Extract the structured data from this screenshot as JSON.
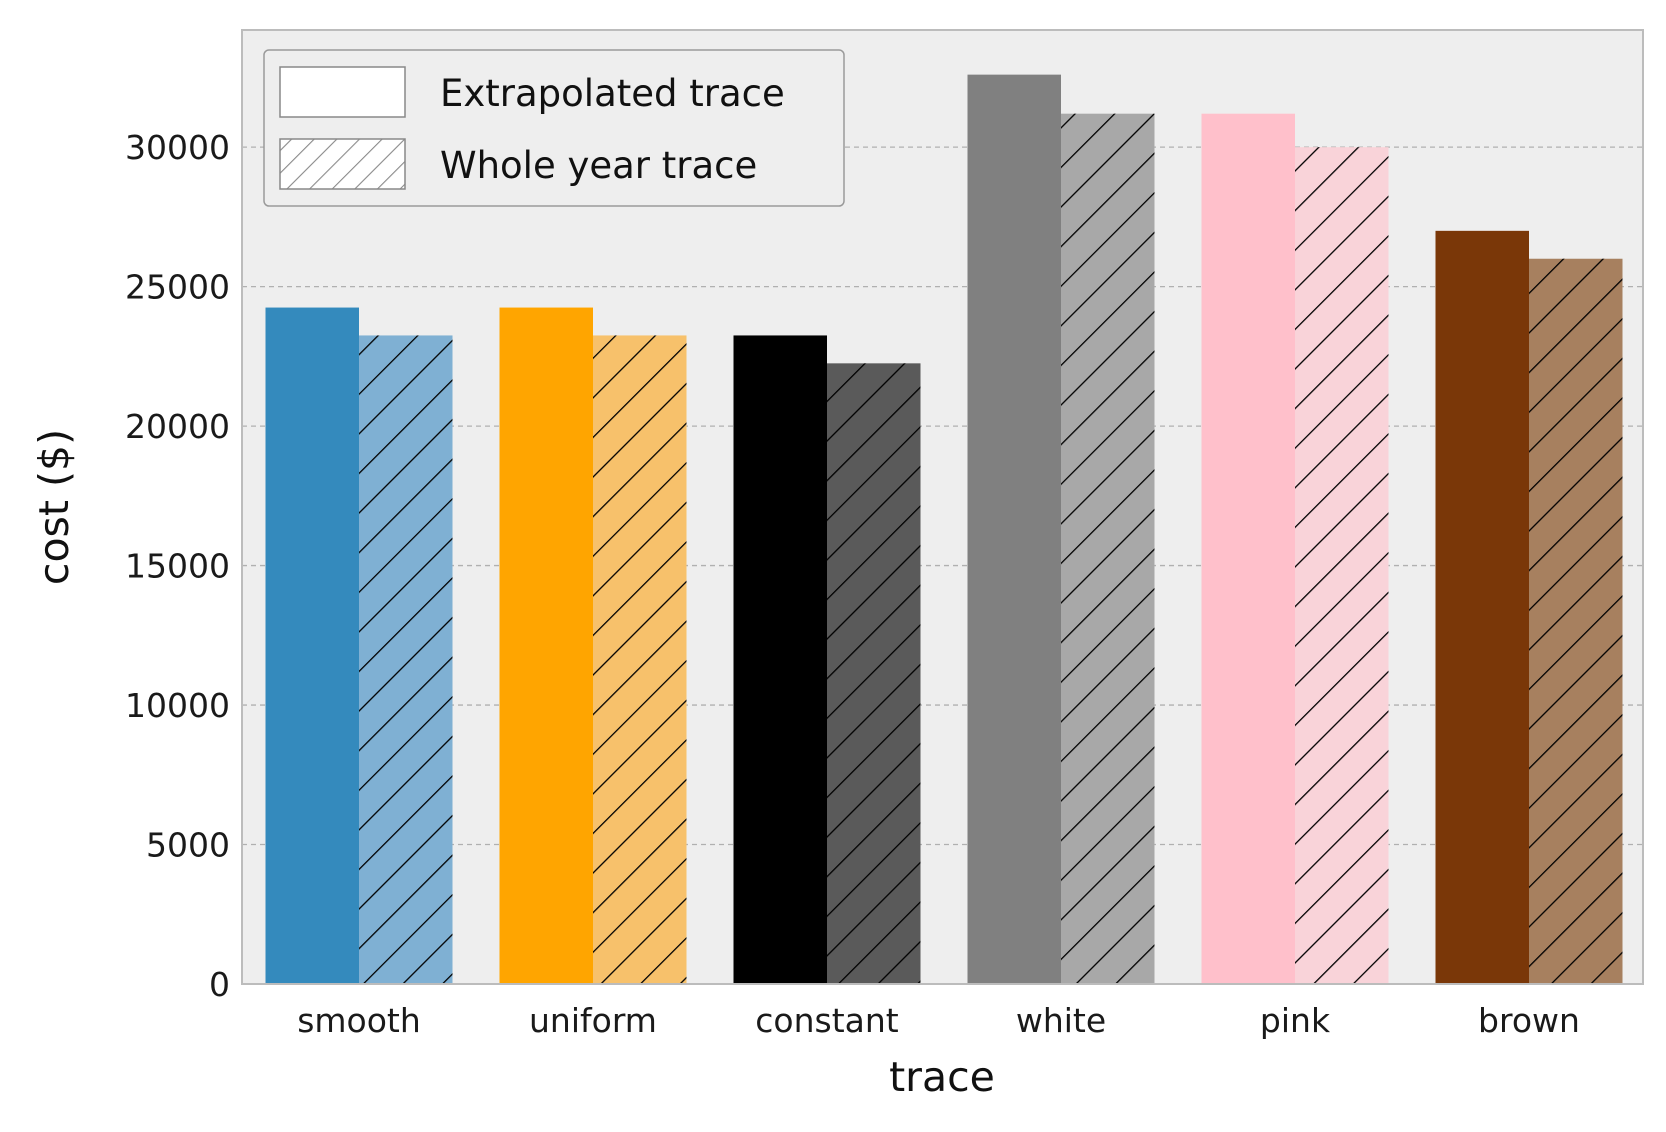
{
  "chart_data": {
    "type": "bar",
    "title": "",
    "xlabel": "trace",
    "ylabel": "cost ($)",
    "categories": [
      "smooth",
      "uniform",
      "constant",
      "white",
      "pink",
      "brown"
    ],
    "series": [
      {
        "name": "Extrapolated trace",
        "values": [
          24250,
          24250,
          23250,
          32600,
          31200,
          27000
        ],
        "colors": [
          "#348abd",
          "#ffa500",
          "#000000",
          "#808080",
          "#ffc0cb",
          "#7a3708"
        ],
        "hatch": false
      },
      {
        "name": "Whole year trace",
        "values": [
          23250,
          23250,
          22250,
          31200,
          30000,
          26000
        ],
        "colors": [
          "#7fb0d3",
          "#f7c16b",
          "#5a5a5a",
          "#a8a8a8",
          "#f9d3d9",
          "#a7805f"
        ],
        "hatch": true
      }
    ],
    "ylim": [
      0,
      34200
    ],
    "yticks": [
      0,
      5000,
      10000,
      15000,
      20000,
      25000,
      30000
    ],
    "ytick_labels": [
      "0",
      "5000",
      "10000",
      "15000",
      "20000",
      "25000",
      "30000"
    ],
    "grid": "y-dashed",
    "legend_position": "top-left",
    "background_color": "#eeeeee"
  }
}
